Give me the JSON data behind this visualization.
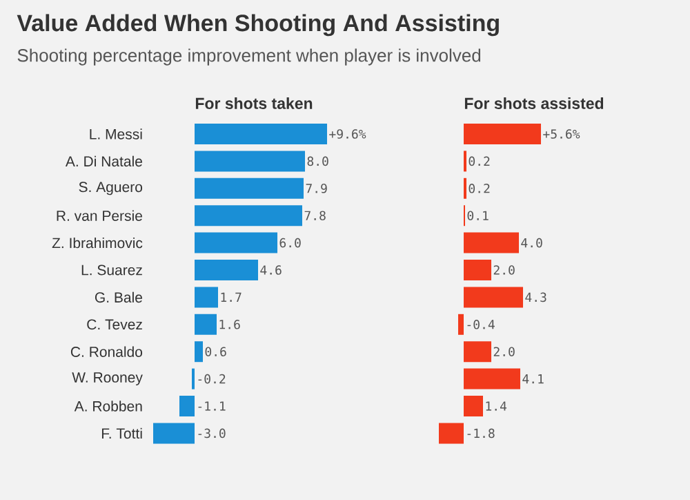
{
  "chart_data": [
    {
      "type": "bar",
      "orientation": "horizontal",
      "title": "Value Added When Shooting And Assisting",
      "subtitle": "Shooting percentage improvement when player is involved",
      "xlabel": "For shots taken",
      "color": "#1a8fd6",
      "categories": [
        "L. Messi",
        "A. Di Natale",
        "S. Aguero",
        "R. van Persie",
        "Z. Ibrahimovic",
        "L. Suarez",
        "G. Bale",
        "C. Tevez",
        "C. Ronaldo",
        "W. Rooney",
        "A. Robben",
        "F. Totti"
      ],
      "values": [
        9.6,
        8.0,
        7.9,
        7.8,
        6.0,
        4.6,
        1.7,
        1.6,
        0.6,
        -0.2,
        -1.1,
        -3.0
      ],
      "value_labels": [
        "+9.6%",
        "8.0",
        "7.9",
        "7.8",
        "6.0",
        "4.6",
        "1.7",
        "1.6",
        "0.6",
        "-0.2",
        "-1.1",
        "-3.0"
      ]
    },
    {
      "type": "bar",
      "orientation": "horizontal",
      "xlabel": "For shots assisted",
      "color": "#f23a1c",
      "categories": [
        null,
        null,
        null,
        null,
        null,
        null,
        null,
        null,
        null,
        null,
        null,
        null
      ],
      "values": [
        5.6,
        0.2,
        0.2,
        0.1,
        4.0,
        2.0,
        4.3,
        -0.4,
        2.0,
        4.1,
        1.4,
        -1.8
      ],
      "value_labels": [
        "+5.6%",
        "0.2",
        "0.2",
        "0.1",
        "4.0",
        "2.0",
        "4.3",
        "-0.4",
        "2.0",
        "4.1",
        "1.4",
        "-1.8"
      ]
    }
  ]
}
